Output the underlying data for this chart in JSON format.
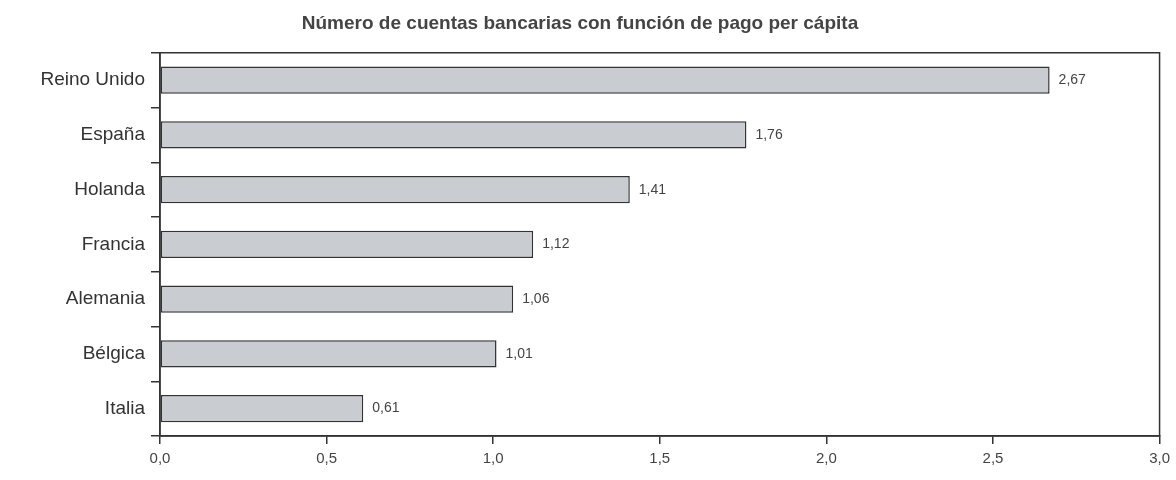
{
  "chart_data": {
    "type": "bar",
    "orientation": "horizontal",
    "title": "Número de cuentas bancarias con función de pago per cápita",
    "categories": [
      "Reino Unido",
      "España",
      "Holanda",
      "Francia",
      "Alemania",
      "Bélgica",
      "Italia"
    ],
    "values": [
      2.67,
      1.76,
      1.41,
      1.12,
      1.06,
      1.01,
      0.61
    ],
    "value_labels": [
      "2,67",
      "1,76",
      "1,41",
      "1,12",
      "1,06",
      "1,01",
      "0,61"
    ],
    "color": "#c9cdd1",
    "xlim": [
      0,
      3
    ],
    "xticks": [
      {
        "value": 0,
        "label": "0,0"
      },
      {
        "value": 0.5,
        "label": "0,5"
      },
      {
        "value": 1,
        "label": "1,0"
      },
      {
        "value": 1.5,
        "label": "1,5"
      },
      {
        "value": 2,
        "label": "2,0"
      },
      {
        "value": 2.5,
        "label": "2,5"
      },
      {
        "value": 3,
        "label": "3,0"
      }
    ]
  }
}
